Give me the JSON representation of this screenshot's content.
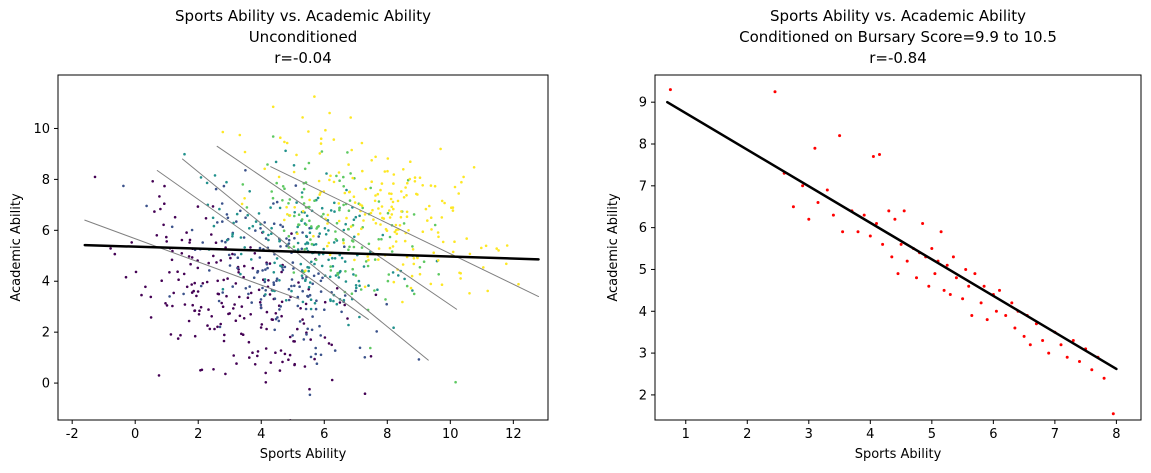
{
  "figure": {
    "background": "#ffffff"
  },
  "chart_data": [
    {
      "type": "scatter",
      "title_lines": [
        "Sports Ability vs. Academic Ability",
        "Unconditioned",
        "r=-0.04"
      ],
      "r": -0.04,
      "xlabel": "Sports Ability",
      "ylabel": "Academic Ability",
      "xlim": [
        -2.45,
        13.1
      ],
      "ylim": [
        -1.45,
        12.1
      ],
      "xticks": [
        -2,
        0,
        2,
        4,
        6,
        8,
        10,
        12
      ],
      "yticks": [
        0,
        2,
        4,
        6,
        8,
        10
      ],
      "grid": false,
      "legend": "none",
      "series": [
        {
          "name": "group-1-low-bursary",
          "color": "#440154",
          "marker_radius": 1.3,
          "generate": {
            "seed": 11,
            "n": 200,
            "center": [
              3.0,
              3.3
            ],
            "sd": [
              1.6,
              1.7
            ],
            "corr": -0.5
          }
        },
        {
          "name": "group-2",
          "color": "#3b528b",
          "marker_radius": 1.3,
          "generate": {
            "seed": 22,
            "n": 150,
            "center": [
              4.3,
              4.5
            ],
            "sd": [
              1.5,
              1.5
            ],
            "corr": -0.5
          }
        },
        {
          "name": "group-3",
          "color": "#21918c",
          "marker_radius": 1.3,
          "generate": {
            "seed": 33,
            "n": 170,
            "center": [
              5.4,
              5.4
            ],
            "sd": [
              1.5,
              1.5
            ],
            "corr": -0.5
          }
        },
        {
          "name": "group-4",
          "color": "#5ec962",
          "marker_radius": 1.3,
          "generate": {
            "seed": 44,
            "n": 120,
            "center": [
              6.3,
              6.1
            ],
            "sd": [
              1.5,
              1.5
            ],
            "corr": -0.5
          }
        },
        {
          "name": "group-5-high-bursary",
          "color": "#fde725",
          "marker_radius": 1.3,
          "generate": {
            "seed": 55,
            "n": 200,
            "center": [
              7.8,
              6.8
            ],
            "sd": [
              1.8,
              1.7
            ],
            "corr": -0.5
          }
        }
      ],
      "fit_lines": [
        {
          "name": "group-fit-1",
          "x": [
            -1.6,
            5.2
          ],
          "y": [
            6.4,
            3.3
          ],
          "color": "#808080",
          "width": 1
        },
        {
          "name": "group-fit-2",
          "x": [
            0.7,
            7.4
          ],
          "y": [
            8.35,
            2.5
          ],
          "color": "#808080",
          "width": 1
        },
        {
          "name": "group-fit-3",
          "x": [
            1.5,
            9.3
          ],
          "y": [
            8.8,
            0.9
          ],
          "color": "#808080",
          "width": 1
        },
        {
          "name": "group-fit-4",
          "x": [
            2.6,
            10.2
          ],
          "y": [
            9.3,
            2.9
          ],
          "color": "#808080",
          "width": 1
        },
        {
          "name": "group-fit-5",
          "x": [
            4.3,
            12.8
          ],
          "y": [
            8.5,
            3.4
          ],
          "color": "#808080",
          "width": 1
        },
        {
          "name": "overall-fit",
          "x": [
            -1.6,
            12.8
          ],
          "y": [
            5.42,
            4.86
          ],
          "color": "#000000",
          "width": 2.5
        }
      ]
    },
    {
      "type": "scatter",
      "title_lines": [
        "Sports Ability vs. Academic Ability",
        "Conditioned on Bursary Score=9.9 to 10.5",
        "r=-0.84"
      ],
      "r": -0.84,
      "xlabel": "Sports Ability",
      "ylabel": "Academic Ability",
      "xlim": [
        0.5,
        8.4
      ],
      "ylim": [
        1.4,
        9.65
      ],
      "xticks": [
        1,
        2,
        3,
        4,
        5,
        6,
        7,
        8
      ],
      "yticks": [
        2,
        3,
        4,
        5,
        6,
        7,
        8,
        9
      ],
      "grid": false,
      "legend": "none",
      "series": [
        {
          "name": "conditioned-sample",
          "color": "#ff0000",
          "marker_radius": 1.5,
          "points": [
            [
              0.75,
              9.3
            ],
            [
              2.45,
              9.25
            ],
            [
              2.6,
              7.3
            ],
            [
              2.75,
              6.5
            ],
            [
              2.9,
              7.0
            ],
            [
              3.0,
              6.2
            ],
            [
              3.1,
              7.9
            ],
            [
              3.15,
              6.6
            ],
            [
              3.3,
              6.9
            ],
            [
              3.4,
              6.3
            ],
            [
              3.5,
              8.2
            ],
            [
              3.55,
              5.9
            ],
            [
              3.7,
              6.4
            ],
            [
              3.8,
              5.9
            ],
            [
              3.9,
              6.3
            ],
            [
              4.0,
              5.8
            ],
            [
              4.05,
              7.7
            ],
            [
              4.1,
              6.1
            ],
            [
              4.15,
              7.75
            ],
            [
              4.2,
              5.6
            ],
            [
              4.3,
              6.4
            ],
            [
              4.35,
              5.3
            ],
            [
              4.4,
              6.2
            ],
            [
              4.45,
              4.9
            ],
            [
              4.5,
              5.6
            ],
            [
              4.55,
              6.4
            ],
            [
              4.6,
              5.2
            ],
            [
              4.7,
              5.5
            ],
            [
              4.75,
              4.8
            ],
            [
              4.8,
              5.4
            ],
            [
              4.85,
              6.1
            ],
            [
              4.9,
              5.3
            ],
            [
              4.95,
              4.6
            ],
            [
              5.0,
              5.5
            ],
            [
              5.05,
              4.9
            ],
            [
              5.1,
              5.2
            ],
            [
              5.15,
              5.9
            ],
            [
              5.2,
              4.5
            ],
            [
              5.25,
              5.1
            ],
            [
              5.3,
              4.4
            ],
            [
              5.35,
              5.3
            ],
            [
              5.4,
              4.8
            ],
            [
              5.5,
              4.3
            ],
            [
              5.55,
              5.0
            ],
            [
              5.6,
              4.6
            ],
            [
              5.65,
              3.9
            ],
            [
              5.7,
              4.9
            ],
            [
              5.8,
              4.2
            ],
            [
              5.85,
              4.6
            ],
            [
              5.9,
              3.8
            ],
            [
              6.0,
              4.4
            ],
            [
              6.05,
              4.0
            ],
            [
              6.1,
              4.5
            ],
            [
              6.2,
              3.9
            ],
            [
              6.3,
              4.2
            ],
            [
              6.35,
              3.6
            ],
            [
              6.4,
              4.0
            ],
            [
              6.5,
              3.4
            ],
            [
              6.55,
              3.9
            ],
            [
              6.6,
              3.2
            ],
            [
              6.7,
              3.7
            ],
            [
              6.8,
              3.3
            ],
            [
              6.9,
              3.0
            ],
            [
              7.0,
              3.5
            ],
            [
              7.1,
              3.2
            ],
            [
              7.2,
              2.9
            ],
            [
              7.3,
              3.3
            ],
            [
              7.4,
              2.8
            ],
            [
              7.5,
              3.1
            ],
            [
              7.6,
              2.6
            ],
            [
              7.7,
              2.9
            ],
            [
              7.8,
              2.4
            ],
            [
              7.95,
              1.55
            ]
          ]
        }
      ],
      "fit_lines": [
        {
          "name": "overall-fit",
          "x": [
            0.7,
            8.0
          ],
          "y": [
            9.0,
            2.62
          ],
          "color": "#000000",
          "width": 2.5
        }
      ]
    }
  ]
}
